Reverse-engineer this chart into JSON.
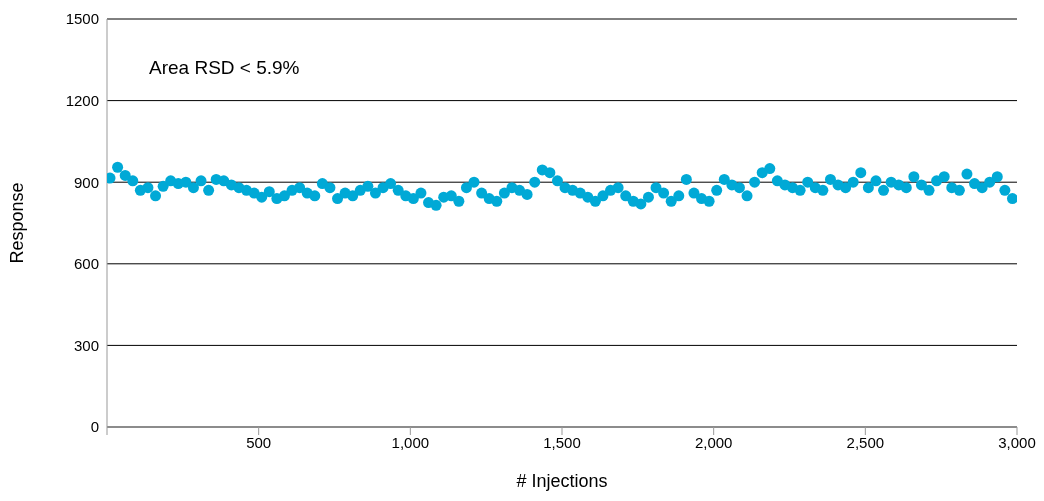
{
  "chart_data": {
    "type": "scatter",
    "xlabel": "# Injections",
    "ylabel": "Response",
    "annotations": [
      "Area RSD < 5.9%"
    ],
    "x": [
      10,
      35,
      60,
      85,
      110,
      135,
      160,
      185,
      210,
      235,
      260,
      285,
      310,
      335,
      360,
      385,
      410,
      435,
      460,
      485,
      510,
      535,
      560,
      585,
      610,
      635,
      660,
      685,
      710,
      735,
      760,
      785,
      810,
      835,
      860,
      885,
      910,
      935,
      960,
      985,
      1010,
      1035,
      1060,
      1085,
      1110,
      1135,
      1160,
      1185,
      1210,
      1235,
      1260,
      1285,
      1310,
      1335,
      1360,
      1385,
      1410,
      1435,
      1460,
      1485,
      1510,
      1535,
      1560,
      1585,
      1610,
      1635,
      1660,
      1685,
      1710,
      1735,
      1760,
      1785,
      1810,
      1835,
      1860,
      1885,
      1910,
      1935,
      1960,
      1985,
      2010,
      2035,
      2060,
      2085,
      2110,
      2135,
      2160,
      2185,
      2210,
      2235,
      2260,
      2285,
      2310,
      2335,
      2360,
      2385,
      2410,
      2435,
      2460,
      2485,
      2510,
      2535,
      2560,
      2585,
      2610,
      2635,
      2660,
      2685,
      2710,
      2735,
      2760,
      2785,
      2810,
      2835,
      2860,
      2885,
      2910,
      2935,
      2960,
      2985
    ],
    "values": [
      915,
      955,
      925,
      905,
      870,
      880,
      850,
      885,
      905,
      895,
      900,
      880,
      905,
      870,
      910,
      905,
      890,
      880,
      870,
      860,
      845,
      865,
      840,
      850,
      870,
      880,
      860,
      850,
      895,
      880,
      840,
      860,
      850,
      870,
      885,
      860,
      880,
      895,
      870,
      850,
      840,
      860,
      825,
      815,
      845,
      850,
      830,
      880,
      900,
      860,
      840,
      830,
      860,
      880,
      870,
      855,
      900,
      945,
      935,
      905,
      880,
      870,
      860,
      845,
      830,
      850,
      870,
      880,
      850,
      830,
      820,
      845,
      880,
      860,
      830,
      850,
      910,
      860,
      840,
      830,
      870,
      910,
      890,
      880,
      850,
      900,
      935,
      950,
      905,
      890,
      880,
      870,
      900,
      880,
      870,
      910,
      890,
      880,
      900,
      935,
      880,
      905,
      870,
      900,
      890,
      880,
      920,
      890,
      870,
      905,
      920,
      880,
      870,
      930,
      895,
      880,
      900,
      920,
      870,
      840
    ],
    "color": "#00a9d6",
    "marker": "circle",
    "xlim": [
      0,
      3000
    ],
    "xticks": [
      {
        "value": 0,
        "label": null
      },
      500,
      {
        "value": 1000,
        "label": "1,000"
      },
      {
        "value": 1500,
        "label": "1,500"
      },
      {
        "value": 2000,
        "label": "2,000"
      },
      {
        "value": 2500,
        "label": "2,500"
      },
      {
        "value": 3000,
        "label": "3,000"
      }
    ],
    "ylim": [
      0,
      1500
    ],
    "yticks": [
      0,
      300,
      600,
      900,
      1200,
      1500
    ],
    "grid": "y"
  }
}
